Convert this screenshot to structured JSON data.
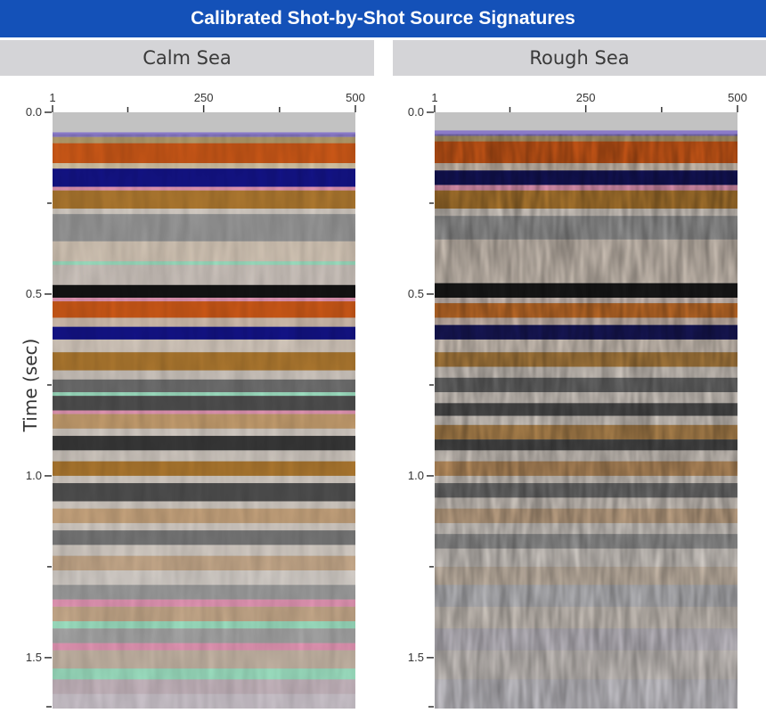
{
  "title": "Calibrated Shot-by-Shot Source Signatures",
  "chart_data": {
    "type": "heatmap",
    "title": "Calibrated Shot-by-Shot Source Signatures",
    "ylabel": "Time (sec)",
    "xlabel": "",
    "colors": {
      "title_bar": "#1451b8",
      "header_bg": "#d4d4d7",
      "plot_bg": "#c0c0c0",
      "orange": "#d05a18",
      "brown": "#b07a30",
      "tan": "#c8ab8c",
      "gray": "#8a8a8a",
      "black": "#141414",
      "navy": "#14148a",
      "purple": "#8a7ac8",
      "pink": "#e899b8",
      "mint": "#9fe3c4"
    },
    "panels": [
      {
        "name": "Calm Sea",
        "x_ticks": [
          "1",
          "250",
          "500"
        ],
        "y_ticks": [
          "0.0",
          "0.5",
          "1.0",
          "1.5"
        ],
        "xlim": [
          1,
          500
        ],
        "ylim": [
          0.0,
          1.64
        ],
        "bands": [
          {
            "t0": 0.0,
            "t1": 0.055,
            "color": "#c2c2c2"
          },
          {
            "t0": 0.055,
            "t1": 0.068,
            "color": "#8a7ac8"
          },
          {
            "t0": 0.068,
            "t1": 0.085,
            "color": "#b8a070"
          },
          {
            "t0": 0.085,
            "t1": 0.14,
            "color": "#d05a18"
          },
          {
            "t0": 0.14,
            "t1": 0.155,
            "color": "#d8c8a8"
          },
          {
            "t0": 0.155,
            "t1": 0.205,
            "color": "#14148a"
          },
          {
            "t0": 0.205,
            "t1": 0.215,
            "color": "#e899b8"
          },
          {
            "t0": 0.215,
            "t1": 0.265,
            "color": "#b07a30"
          },
          {
            "t0": 0.265,
            "t1": 0.28,
            "color": "#d8d0c8"
          },
          {
            "t0": 0.28,
            "t1": 0.355,
            "color": "#9a9a9a"
          },
          {
            "t0": 0.355,
            "t1": 0.41,
            "color": "#d6c8b8"
          },
          {
            "t0": 0.41,
            "t1": 0.42,
            "color": "#9fe3c4"
          },
          {
            "t0": 0.42,
            "t1": 0.475,
            "color": "#cfc6bf"
          },
          {
            "t0": 0.475,
            "t1": 0.51,
            "color": "#141414"
          },
          {
            "t0": 0.51,
            "t1": 0.52,
            "color": "#e899b8"
          },
          {
            "t0": 0.52,
            "t1": 0.565,
            "color": "#d05a18"
          },
          {
            "t0": 0.565,
            "t1": 0.59,
            "color": "#d4c0b0"
          },
          {
            "t0": 0.59,
            "t1": 0.625,
            "color": "#14148a"
          },
          {
            "t0": 0.625,
            "t1": 0.66,
            "color": "#d8ccc0"
          },
          {
            "t0": 0.66,
            "t1": 0.71,
            "color": "#b07a30"
          },
          {
            "t0": 0.71,
            "t1": 0.735,
            "color": "#d0c8c0"
          },
          {
            "t0": 0.735,
            "t1": 0.77,
            "color": "#707070"
          },
          {
            "t0": 0.77,
            "t1": 0.78,
            "color": "#9fe3c4"
          },
          {
            "t0": 0.78,
            "t1": 0.82,
            "color": "#505050"
          },
          {
            "t0": 0.82,
            "t1": 0.83,
            "color": "#e899b8"
          },
          {
            "t0": 0.83,
            "t1": 0.87,
            "color": "#c8a070"
          },
          {
            "t0": 0.87,
            "t1": 0.89,
            "color": "#d8d0c8"
          },
          {
            "t0": 0.89,
            "t1": 0.93,
            "color": "#3a3a3a"
          },
          {
            "t0": 0.93,
            "t1": 0.96,
            "color": "#d4ccc4"
          },
          {
            "t0": 0.96,
            "t1": 1.0,
            "color": "#b07a30"
          },
          {
            "t0": 1.0,
            "t1": 1.02,
            "color": "#d8d0c8"
          },
          {
            "t0": 1.02,
            "t1": 1.07,
            "color": "#505050"
          },
          {
            "t0": 1.07,
            "t1": 1.09,
            "color": "#d4ccc4"
          },
          {
            "t0": 1.09,
            "t1": 1.13,
            "color": "#c8a57e"
          },
          {
            "t0": 1.13,
            "t1": 1.15,
            "color": "#d8d0c8"
          },
          {
            "t0": 1.15,
            "t1": 1.19,
            "color": "#7a7a7a"
          },
          {
            "t0": 1.19,
            "t1": 1.22,
            "color": "#d8d0c8"
          },
          {
            "t0": 1.22,
            "t1": 1.26,
            "color": "#c8ab8c"
          },
          {
            "t0": 1.26,
            "t1": 1.3,
            "color": "#d8d2cc"
          },
          {
            "t0": 1.3,
            "t1": 1.34,
            "color": "#a0a0a0"
          },
          {
            "t0": 1.34,
            "t1": 1.36,
            "color": "#e899b8"
          },
          {
            "t0": 1.36,
            "t1": 1.4,
            "color": "#c8ab8c"
          },
          {
            "t0": 1.4,
            "t1": 1.42,
            "color": "#9fe3c4"
          },
          {
            "t0": 1.42,
            "t1": 1.46,
            "color": "#a8a8a8"
          },
          {
            "t0": 1.46,
            "t1": 1.48,
            "color": "#e899b8"
          },
          {
            "t0": 1.48,
            "t1": 1.53,
            "color": "#c8b8a8"
          },
          {
            "t0": 1.53,
            "t1": 1.56,
            "color": "#9fe3c4"
          },
          {
            "t0": 1.56,
            "t1": 1.6,
            "color": "#c8b8c0"
          },
          {
            "t0": 1.6,
            "t1": 1.64,
            "color": "#d0c8d0"
          }
        ]
      },
      {
        "name": "Rough Sea",
        "x_ticks": [
          "1",
          "250",
          "500"
        ],
        "y_ticks": [
          "0.0",
          "0.5",
          "1.0",
          "1.5"
        ],
        "xlim": [
          1,
          500
        ],
        "ylim": [
          0.0,
          1.64
        ],
        "bands": [
          {
            "t0": 0.0,
            "t1": 0.05,
            "color": "#c2c2c2"
          },
          {
            "t0": 0.05,
            "t1": 0.065,
            "color": "#8a7ac8"
          },
          {
            "t0": 0.065,
            "t1": 0.08,
            "color": "#b8a070"
          },
          {
            "t0": 0.08,
            "t1": 0.14,
            "color": "#d05a18"
          },
          {
            "t0": 0.14,
            "t1": 0.16,
            "color": "#d8c8b8"
          },
          {
            "t0": 0.16,
            "t1": 0.2,
            "color": "#14145a"
          },
          {
            "t0": 0.2,
            "t1": 0.215,
            "color": "#e899b8"
          },
          {
            "t0": 0.215,
            "t1": 0.265,
            "color": "#b07a30"
          },
          {
            "t0": 0.265,
            "t1": 0.285,
            "color": "#d8d0c8"
          },
          {
            "t0": 0.285,
            "t1": 0.35,
            "color": "#9a9a9a"
          },
          {
            "t0": 0.35,
            "t1": 0.47,
            "color": "#d4c8bc"
          },
          {
            "t0": 0.47,
            "t1": 0.51,
            "color": "#1a1a1a"
          },
          {
            "t0": 0.51,
            "t1": 0.525,
            "color": "#d8c8c0"
          },
          {
            "t0": 0.525,
            "t1": 0.565,
            "color": "#c8702a"
          },
          {
            "t0": 0.565,
            "t1": 0.585,
            "color": "#d4c0b4"
          },
          {
            "t0": 0.585,
            "t1": 0.625,
            "color": "#18185a"
          },
          {
            "t0": 0.625,
            "t1": 0.66,
            "color": "#d8ccc0"
          },
          {
            "t0": 0.66,
            "t1": 0.7,
            "color": "#b08040"
          },
          {
            "t0": 0.7,
            "t1": 0.73,
            "color": "#d4ccc4"
          },
          {
            "t0": 0.73,
            "t1": 0.77,
            "color": "#6a6a6a"
          },
          {
            "t0": 0.77,
            "t1": 0.8,
            "color": "#d8d0c8"
          },
          {
            "t0": 0.8,
            "t1": 0.835,
            "color": "#505050"
          },
          {
            "t0": 0.835,
            "t1": 0.86,
            "color": "#d8d0c8"
          },
          {
            "t0": 0.86,
            "t1": 0.9,
            "color": "#b48850"
          },
          {
            "t0": 0.9,
            "t1": 0.93,
            "color": "#4a4a4a"
          },
          {
            "t0": 0.93,
            "t1": 0.96,
            "color": "#d4ccc4"
          },
          {
            "t0": 0.96,
            "t1": 1.0,
            "color": "#bc9060"
          },
          {
            "t0": 1.0,
            "t1": 1.02,
            "color": "#d8d0c8"
          },
          {
            "t0": 1.02,
            "t1": 1.06,
            "color": "#707070"
          },
          {
            "t0": 1.06,
            "t1": 1.09,
            "color": "#d6cec6"
          },
          {
            "t0": 1.09,
            "t1": 1.13,
            "color": "#c8ab8c"
          },
          {
            "t0": 1.13,
            "t1": 1.16,
            "color": "#d8d2cc"
          },
          {
            "t0": 1.16,
            "t1": 1.2,
            "color": "#9a9a9a"
          },
          {
            "t0": 1.2,
            "t1": 1.25,
            "color": "#d8d2cc"
          },
          {
            "t0": 1.25,
            "t1": 1.3,
            "color": "#cfc0b0"
          },
          {
            "t0": 1.3,
            "t1": 1.36,
            "color": "#c0c0c4"
          },
          {
            "t0": 1.36,
            "t1": 1.42,
            "color": "#d4ccc4"
          },
          {
            "t0": 1.42,
            "t1": 1.48,
            "color": "#c8c4cc"
          },
          {
            "t0": 1.48,
            "t1": 1.56,
            "color": "#d2ccc8"
          },
          {
            "t0": 1.56,
            "t1": 1.64,
            "color": "#cccad0"
          }
        ]
      }
    ]
  }
}
